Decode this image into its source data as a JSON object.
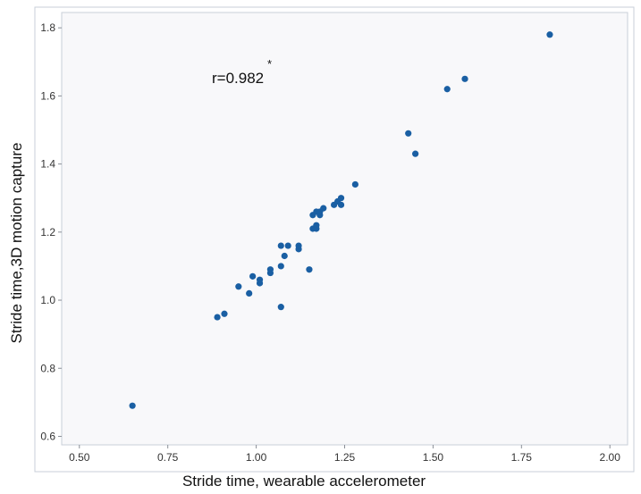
{
  "chart_data": {
    "type": "scatter",
    "xlabel": "Stride time, wearable accelerometer",
    "ylabel": "Stride  time,3D motion capture",
    "annotation": {
      "text": "r=0.982",
      "superscript": "*"
    },
    "xlim": [
      0.45,
      2.05
    ],
    "ylim": [
      0.575,
      1.845
    ],
    "x_ticks": [
      0.5,
      0.75,
      1.0,
      1.25,
      1.5,
      1.75,
      2.0
    ],
    "x_tick_labels": [
      "0.50",
      "0.75",
      "1.00",
      "1.25",
      "1.50",
      "1.75",
      "2.00"
    ],
    "y_ticks": [
      0.6,
      0.8,
      1.0,
      1.2,
      1.4,
      1.6,
      1.8
    ],
    "y_tick_labels": [
      "0.6",
      "0.8",
      "1.0",
      "1.2",
      "1.4",
      "1.6",
      "1.8"
    ],
    "grid": false,
    "colors": {
      "point": "#1a5fa3",
      "plot_background": "#f8f8fa",
      "frame": "#c9cfd8"
    },
    "series": [
      {
        "x": [
          0.65,
          0.89,
          0.91,
          0.95,
          0.98,
          0.99,
          1.01,
          1.01,
          1.04,
          1.04,
          1.07,
          1.07,
          1.07,
          1.08,
          1.09,
          1.12,
          1.12,
          1.15,
          1.16,
          1.16,
          1.17,
          1.17,
          1.17,
          1.18,
          1.18,
          1.19,
          1.22,
          1.23,
          1.24,
          1.24,
          1.28,
          1.43,
          1.45,
          1.54,
          1.59,
          1.83
        ],
        "y": [
          0.69,
          0.95,
          0.96,
          1.04,
          1.02,
          1.07,
          1.05,
          1.06,
          1.08,
          1.09,
          1.1,
          1.16,
          0.98,
          1.13,
          1.16,
          1.15,
          1.16,
          1.09,
          1.21,
          1.25,
          1.21,
          1.22,
          1.26,
          1.25,
          1.26,
          1.27,
          1.28,
          1.29,
          1.28,
          1.3,
          1.34,
          1.49,
          1.43,
          1.62,
          1.65,
          1.78
        ]
      }
    ]
  }
}
